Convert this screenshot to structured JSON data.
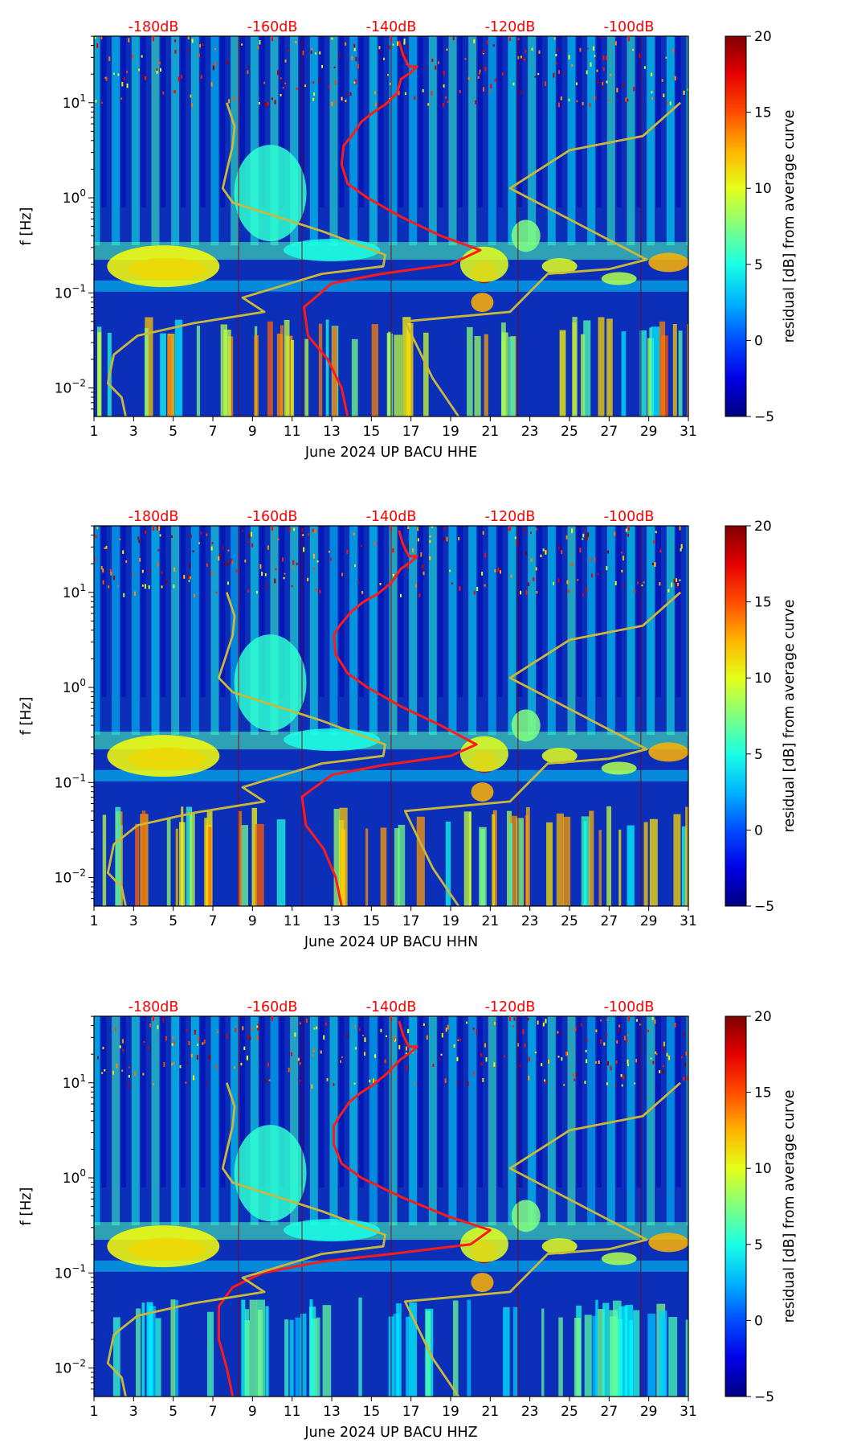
{
  "chart_data": [
    {
      "type": "heatmap",
      "title": "",
      "xlabel": "June 2024 UP BACU  HHE",
      "ylabel": "f [Hz]",
      "x_ticks": [
        "1",
        "3",
        "5",
        "7",
        "9",
        "11",
        "13",
        "15",
        "17",
        "19",
        "21",
        "23",
        "25",
        "27",
        "29",
        "31"
      ],
      "y_ticks": [
        "10^-2",
        "10^-1",
        "10^0",
        "10^1"
      ],
      "xlim": [
        1,
        31
      ],
      "ylim_log10": [
        -2.3,
        1.7
      ],
      "top_labels": [
        "-180dB",
        "-160dB",
        "-140dB",
        "-120dB",
        "-100dB"
      ],
      "colorbar": {
        "label": "residual [dB] from average curve",
        "ticks": [
          "−5",
          "0",
          "5",
          "10",
          "15",
          "20"
        ],
        "range": [
          -5,
          20
        ],
        "colormap": "jet"
      },
      "series": [
        {
          "color": "#ff1a1a",
          "points": [
            [
              16.4,
              1.65
            ],
            [
              16.6,
              1.5
            ],
            [
              16.9,
              1.38
            ],
            [
              17.3,
              1.38
            ],
            [
              17.0,
              1.32
            ],
            [
              16.5,
              1.25
            ],
            [
              16.3,
              1.1
            ],
            [
              15.7,
              0.98
            ],
            [
              15.1,
              0.9
            ],
            [
              14.5,
              0.8
            ],
            [
              14.0,
              0.65
            ],
            [
              13.6,
              0.55
            ],
            [
              13.5,
              0.35
            ],
            [
              13.8,
              0.15
            ],
            [
              14.8,
              0.0
            ],
            [
              16.5,
              -0.2
            ],
            [
              18.5,
              -0.4
            ],
            [
              20.5,
              -0.55
            ],
            [
              19.0,
              -0.7
            ],
            [
              15.5,
              -0.8
            ],
            [
              13.0,
              -0.9
            ],
            [
              11.6,
              -1.15
            ],
            [
              11.8,
              -1.45
            ],
            [
              12.8,
              -1.7
            ],
            [
              13.5,
              -2.0
            ],
            [
              13.8,
              -2.3
            ]
          ]
        },
        {
          "color": "#c9b83a",
          "points": [
            [
              7.7,
              1.0
            ],
            [
              8.1,
              0.75
            ],
            [
              8.0,
              0.55
            ],
            [
              7.5,
              0.1
            ],
            [
              8.0,
              -0.05
            ],
            [
              12.5,
              -0.35
            ],
            [
              15.7,
              -0.6
            ],
            [
              15.6,
              -0.72
            ],
            [
              12.5,
              -0.8
            ],
            [
              8.5,
              -1.05
            ],
            [
              9.6,
              -1.2
            ],
            [
              6.0,
              -1.32
            ],
            [
              3.2,
              -1.45
            ],
            [
              2.0,
              -1.65
            ],
            [
              1.7,
              -1.95
            ],
            [
              2.4,
              -2.1
            ],
            [
              2.6,
              -2.3
            ]
          ]
        },
        {
          "color": "#c9b83a",
          "points": [
            [
              19.4,
              -2.3
            ],
            [
              18.1,
              -1.9
            ],
            [
              16.7,
              -1.3
            ],
            [
              22.0,
              -1.2
            ],
            [
              23.9,
              -0.8
            ],
            [
              27.0,
              -0.75
            ],
            [
              28.9,
              -0.65
            ],
            [
              22.0,
              0.1
            ],
            [
              25.0,
              0.5
            ],
            [
              28.7,
              0.65
            ],
            [
              30.6,
              1.0
            ]
          ]
        }
      ]
    },
    {
      "type": "heatmap",
      "title": "",
      "xlabel": "June 2024 UP BACU  HHN",
      "ylabel": "f [Hz]",
      "x_ticks": [
        "1",
        "3",
        "5",
        "7",
        "9",
        "11",
        "13",
        "15",
        "17",
        "19",
        "21",
        "23",
        "25",
        "27",
        "29",
        "31"
      ],
      "y_ticks": [
        "10^-2",
        "10^-1",
        "10^0",
        "10^1"
      ],
      "xlim": [
        1,
        31
      ],
      "ylim_log10": [
        -2.3,
        1.7
      ],
      "top_labels": [
        "-180dB",
        "-160dB",
        "-140dB",
        "-120dB",
        "-100dB"
      ],
      "colorbar": {
        "label": "residual [dB] from average curve",
        "ticks": [
          "−5",
          "0",
          "5",
          "10",
          "15",
          "20"
        ],
        "range": [
          -5,
          20
        ],
        "colormap": "jet"
      },
      "series": [
        {
          "color": "#ff1a1a",
          "points": [
            [
              16.4,
              1.65
            ],
            [
              16.6,
              1.5
            ],
            [
              16.9,
              1.38
            ],
            [
              17.3,
              1.38
            ],
            [
              17.0,
              1.32
            ],
            [
              16.5,
              1.25
            ],
            [
              16.0,
              1.1
            ],
            [
              15.3,
              0.98
            ],
            [
              14.6,
              0.9
            ],
            [
              14.0,
              0.8
            ],
            [
              13.4,
              0.65
            ],
            [
              13.1,
              0.55
            ],
            [
              13.2,
              0.35
            ],
            [
              13.8,
              0.15
            ],
            [
              14.8,
              0.0
            ],
            [
              16.5,
              -0.2
            ],
            [
              18.5,
              -0.4
            ],
            [
              20.3,
              -0.6
            ],
            [
              19.0,
              -0.72
            ],
            [
              15.5,
              -0.82
            ],
            [
              13.0,
              -0.92
            ],
            [
              11.5,
              -1.15
            ],
            [
              11.7,
              -1.45
            ],
            [
              12.6,
              -1.7
            ],
            [
              13.2,
              -2.0
            ],
            [
              13.5,
              -2.3
            ]
          ]
        },
        {
          "color": "#c9b83a",
          "points": [
            [
              7.7,
              1.0
            ],
            [
              8.1,
              0.75
            ],
            [
              8.0,
              0.55
            ],
            [
              7.3,
              0.1
            ],
            [
              8.0,
              -0.05
            ],
            [
              12.5,
              -0.35
            ],
            [
              15.7,
              -0.6
            ],
            [
              15.6,
              -0.72
            ],
            [
              12.5,
              -0.8
            ],
            [
              8.5,
              -1.05
            ],
            [
              9.6,
              -1.2
            ],
            [
              6.0,
              -1.32
            ],
            [
              3.2,
              -1.45
            ],
            [
              2.0,
              -1.65
            ],
            [
              1.7,
              -1.95
            ],
            [
              2.4,
              -2.1
            ],
            [
              2.6,
              -2.3
            ]
          ]
        },
        {
          "color": "#c9b83a",
          "points": [
            [
              19.4,
              -2.3
            ],
            [
              18.1,
              -1.9
            ],
            [
              16.7,
              -1.3
            ],
            [
              22.0,
              -1.2
            ],
            [
              23.9,
              -0.8
            ],
            [
              27.0,
              -0.75
            ],
            [
              28.9,
              -0.65
            ],
            [
              22.0,
              0.1
            ],
            [
              25.0,
              0.5
            ],
            [
              28.7,
              0.65
            ],
            [
              30.6,
              1.0
            ]
          ]
        }
      ]
    },
    {
      "type": "heatmap",
      "title": "",
      "xlabel": "June 2024 UP BACU  HHZ",
      "ylabel": "f [Hz]",
      "x_ticks": [
        "1",
        "3",
        "5",
        "7",
        "9",
        "11",
        "13",
        "15",
        "17",
        "19",
        "21",
        "23",
        "25",
        "27",
        "29",
        "31"
      ],
      "y_ticks": [
        "10^-2",
        "10^-1",
        "10^0",
        "10^1"
      ],
      "xlim": [
        1,
        31
      ],
      "ylim_log10": [
        -2.3,
        1.7
      ],
      "top_labels": [
        "-180dB",
        "-160dB",
        "-140dB",
        "-120dB",
        "-100dB"
      ],
      "colorbar": {
        "label": "residual [dB] from average curve",
        "ticks": [
          "−5",
          "0",
          "5",
          "10",
          "15",
          "20"
        ],
        "range": [
          -5,
          20
        ],
        "colormap": "jet"
      },
      "series": [
        {
          "color": "#ff1a1a",
          "points": [
            [
              16.4,
              1.65
            ],
            [
              16.6,
              1.5
            ],
            [
              16.9,
              1.38
            ],
            [
              17.3,
              1.38
            ],
            [
              17.0,
              1.32
            ],
            [
              16.5,
              1.25
            ],
            [
              15.8,
              1.1
            ],
            [
              15.1,
              0.98
            ],
            [
              14.5,
              0.9
            ],
            [
              13.9,
              0.8
            ],
            [
              13.4,
              0.65
            ],
            [
              13.1,
              0.55
            ],
            [
              13.1,
              0.35
            ],
            [
              13.5,
              0.15
            ],
            [
              14.5,
              0.0
            ],
            [
              16.5,
              -0.2
            ],
            [
              18.8,
              -0.4
            ],
            [
              21.0,
              -0.55
            ],
            [
              20.0,
              -0.7
            ],
            [
              16.0,
              -0.8
            ],
            [
              12.5,
              -0.88
            ],
            [
              9.5,
              -1.0
            ],
            [
              8.0,
              -1.15
            ],
            [
              7.3,
              -1.35
            ],
            [
              7.3,
              -1.7
            ],
            [
              7.7,
              -2.0
            ],
            [
              8.0,
              -2.3
            ]
          ]
        },
        {
          "color": "#c9b83a",
          "points": [
            [
              7.7,
              1.0
            ],
            [
              8.1,
              0.75
            ],
            [
              8.0,
              0.55
            ],
            [
              7.5,
              0.1
            ],
            [
              8.0,
              -0.05
            ],
            [
              12.5,
              -0.35
            ],
            [
              15.7,
              -0.6
            ],
            [
              15.6,
              -0.72
            ],
            [
              12.5,
              -0.8
            ],
            [
              8.5,
              -1.05
            ],
            [
              9.6,
              -1.2
            ],
            [
              6.0,
              -1.32
            ],
            [
              3.2,
              -1.45
            ],
            [
              2.0,
              -1.65
            ],
            [
              1.7,
              -1.95
            ],
            [
              2.4,
              -2.1
            ],
            [
              2.6,
              -2.3
            ]
          ]
        },
        {
          "color": "#c9b83a",
          "points": [
            [
              19.4,
              -2.3
            ],
            [
              18.1,
              -1.9
            ],
            [
              16.7,
              -1.3
            ],
            [
              22.0,
              -1.2
            ],
            [
              23.9,
              -0.8
            ],
            [
              27.0,
              -0.75
            ],
            [
              28.9,
              -0.65
            ],
            [
              22.0,
              0.1
            ],
            [
              25.0,
              0.5
            ],
            [
              28.7,
              0.65
            ],
            [
              30.6,
              1.0
            ]
          ]
        }
      ]
    }
  ]
}
